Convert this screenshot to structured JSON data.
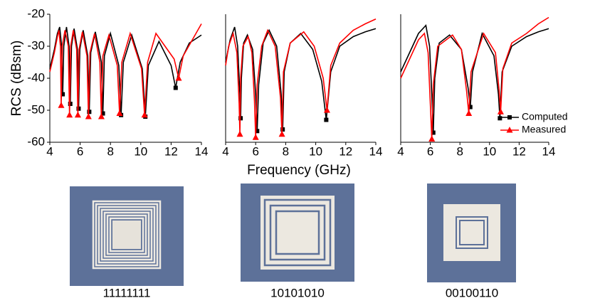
{
  "y_label": "RCS (dBsm)",
  "x_label": "Frequency (GHz)",
  "chart_data": [
    {
      "type": "line",
      "xlim": [
        4,
        14
      ],
      "xticks": [
        4,
        6,
        8,
        10,
        12,
        14
      ],
      "ylim": [
        -60,
        -20
      ],
      "yticks": [
        -60,
        -50,
        -40,
        -30,
        -20
      ],
      "series": [
        {
          "name": "Computed",
          "color": "#000000",
          "marker": "square",
          "x": [
            4,
            4.3,
            4.5,
            4.65,
            4.78,
            4.85,
            4.92,
            5.1,
            5.27,
            5.35,
            5.43,
            5.6,
            5.82,
            5.9,
            5.98,
            6.2,
            6.5,
            6.6,
            6.7,
            7.0,
            7.4,
            7.5,
            7.6,
            8.0,
            8.55,
            8.7,
            8.85,
            9.4,
            10.1,
            10.3,
            10.5,
            11.2,
            12.0,
            12.3,
            12.6,
            13.2,
            14
          ],
          "values": [
            -37,
            -31,
            -26,
            -24,
            -30,
            -45,
            -30,
            -24,
            -30,
            -48,
            -30,
            -24.5,
            -31,
            -49.5,
            -31,
            -25,
            -33,
            -50.5,
            -32,
            -25.5,
            -35,
            -51,
            -33,
            -26,
            -36,
            -51.5,
            -35,
            -26.5,
            -37,
            -52,
            -36,
            -28.5,
            -36,
            -43,
            -35,
            -29,
            -26.5
          ]
        },
        {
          "name": "Measured",
          "color": "#ff0000",
          "marker": "triangle",
          "x": [
            4,
            4.3,
            4.5,
            4.6,
            4.7,
            4.75,
            4.82,
            5.0,
            5.22,
            5.3,
            5.38,
            5.55,
            5.77,
            5.85,
            5.93,
            6.15,
            6.45,
            6.55,
            6.65,
            6.95,
            7.3,
            7.4,
            7.5,
            7.9,
            8.45,
            8.6,
            8.75,
            9.3,
            10.05,
            10.25,
            10.45,
            11.0,
            12.2,
            12.5,
            12.8,
            13.4,
            14
          ],
          "values": [
            -38,
            -32,
            -27,
            -25,
            -30,
            -48.5,
            -30,
            -25,
            -30,
            -51.5,
            -30,
            -25,
            -31,
            -51.5,
            -31,
            -25.5,
            -33,
            -52,
            -32,
            -26,
            -35,
            -52,
            -33,
            -26.5,
            -36,
            -51,
            -35,
            -26,
            -37,
            -51.5,
            -35,
            -26,
            -34,
            -40,
            -33,
            -28,
            -23
          ]
        }
      ]
    },
    {
      "type": "line",
      "xlim": [
        4,
        14
      ],
      "xticks": [
        4,
        6,
        8,
        10,
        12,
        14
      ],
      "ylim": [
        -60,
        -20
      ],
      "series": [
        {
          "name": "Computed",
          "color": "#000000",
          "marker": "square",
          "x": [
            4,
            4.3,
            4.6,
            4.8,
            4.95,
            5.0,
            5.05,
            5.2,
            5.45,
            5.8,
            6.0,
            6.1,
            6.2,
            6.5,
            6.9,
            7.4,
            7.7,
            7.8,
            7.9,
            8.3,
            9.0,
            9.8,
            10.4,
            10.7,
            11.0,
            11.6,
            12.5,
            13.3,
            14
          ],
          "values": [
            -35,
            -28,
            -24,
            -30,
            -45,
            -52.5,
            -40,
            -29,
            -26.5,
            -31,
            -45,
            -56.5,
            -42,
            -29,
            -25,
            -30,
            -45,
            -56,
            -38,
            -29,
            -26,
            -31,
            -41,
            -53,
            -38,
            -30,
            -27,
            -25.5,
            -24.5
          ]
        },
        {
          "name": "Measured",
          "color": "#ff0000",
          "marker": "triangle",
          "x": [
            4,
            4.2,
            4.5,
            4.75,
            4.9,
            4.95,
            5.0,
            5.15,
            5.5,
            5.75,
            5.92,
            6.0,
            6.1,
            6.4,
            6.8,
            7.3,
            7.65,
            7.75,
            7.85,
            8.3,
            9.2,
            9.9,
            10.5,
            10.75,
            11.0,
            11.6,
            12.5,
            13.3,
            14
          ],
          "values": [
            -36,
            -30,
            -26,
            -32,
            -48,
            -57.5,
            -40,
            -30,
            -27,
            -32,
            -47,
            -58.5,
            -42,
            -30,
            -25,
            -30,
            -46,
            -57.5,
            -38,
            -29,
            -25.5,
            -30,
            -40,
            -50,
            -36,
            -29,
            -25,
            -23,
            -21.5
          ]
        }
      ]
    },
    {
      "type": "line",
      "xlim": [
        4,
        14
      ],
      "xticks": [
        4,
        6,
        8,
        10,
        12,
        14
      ],
      "ylim": [
        -60,
        -20
      ],
      "legend": "lower right",
      "series": [
        {
          "name": "Computed",
          "color": "#000000",
          "marker": "square",
          "x": [
            4,
            4.6,
            5.2,
            5.7,
            5.95,
            6.1,
            6.2,
            6.3,
            6.6,
            7.3,
            8.1,
            8.55,
            8.7,
            8.85,
            9.5,
            10.3,
            10.6,
            10.7,
            10.85,
            11.5,
            12.5,
            13.3,
            14
          ],
          "values": [
            -38,
            -32,
            -26,
            -23.5,
            -30,
            -45,
            -57,
            -40,
            -29,
            -26.5,
            -31,
            -43,
            -49,
            -38,
            -26,
            -33,
            -45,
            -52.5,
            -38,
            -30,
            -27,
            -25.5,
            -24.5
          ]
        },
        {
          "name": "Measured",
          "color": "#ff0000",
          "marker": "triangle",
          "x": [
            4,
            4.6,
            5.2,
            5.6,
            5.85,
            6.0,
            6.1,
            6.2,
            6.5,
            7.5,
            8.1,
            8.45,
            8.6,
            8.75,
            9.6,
            10.4,
            10.65,
            10.75,
            10.9,
            11.5,
            12.5,
            13.3,
            14
          ],
          "values": [
            -40,
            -34,
            -28,
            -26,
            -32,
            -48,
            -59,
            -42,
            -30,
            -26.5,
            -31,
            -44,
            -51,
            -38,
            -26,
            -32,
            -44,
            -50.5,
            -37,
            -29,
            -26,
            -23,
            -21
          ]
        }
      ]
    }
  ],
  "images": [
    {
      "caption": "11111111"
    },
    {
      "caption": "10101010"
    },
    {
      "caption": "00100110"
    }
  ]
}
